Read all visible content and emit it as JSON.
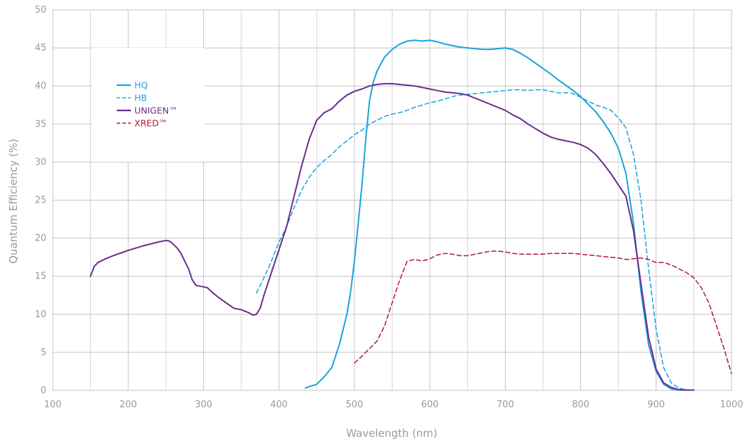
{
  "chart_data": {
    "type": "line",
    "xlabel": "Wavelength (nm)",
    "ylabel": "Quantum Efficiency  (%)",
    "xlim": [
      100,
      1000
    ],
    "ylim": [
      0,
      50
    ],
    "xticks": [
      100,
      200,
      300,
      400,
      500,
      600,
      700,
      800,
      900,
      1000
    ],
    "yticks": [
      0,
      5,
      10,
      15,
      20,
      25,
      30,
      35,
      40,
      45,
      50
    ],
    "grid": true,
    "legend_position": "top-left",
    "series": [
      {
        "name": "HQ",
        "color": "#1aa3dc",
        "dash": "solid",
        "x": [
          435,
          440,
          450,
          460,
          470,
          480,
          490,
          495,
          500,
          505,
          510,
          515,
          520,
          525,
          530,
          540,
          550,
          560,
          570,
          580,
          590,
          600,
          610,
          620,
          630,
          640,
          650,
          660,
          670,
          680,
          690,
          700,
          710,
          720,
          730,
          740,
          750,
          760,
          770,
          780,
          790,
          800,
          810,
          820,
          830,
          840,
          850,
          860,
          870,
          880,
          890,
          900,
          910,
          920,
          930,
          940,
          950
        ],
        "y": [
          0.3,
          0.5,
          0.8,
          1.8,
          3.0,
          6.0,
          10.0,
          13.0,
          17.0,
          22.0,
          27.0,
          33.0,
          38.0,
          40.5,
          42.0,
          43.8,
          44.8,
          45.5,
          45.9,
          46.0,
          45.9,
          46.0,
          45.8,
          45.5,
          45.3,
          45.1,
          45.0,
          44.9,
          44.8,
          44.8,
          44.9,
          45.0,
          44.8,
          44.3,
          43.7,
          43.0,
          42.3,
          41.6,
          40.8,
          40.1,
          39.4,
          38.6,
          37.6,
          36.6,
          35.3,
          33.8,
          31.8,
          28.5,
          22.0,
          13.0,
          6.0,
          2.5,
          0.8,
          0.2,
          0.05,
          0.05,
          0.05
        ]
      },
      {
        "name": "HB",
        "color": "#1aa3dc",
        "dash": "dashed",
        "x": [
          370,
          380,
          390,
          400,
          410,
          420,
          430,
          440,
          450,
          460,
          470,
          480,
          490,
          500,
          510,
          520,
          530,
          540,
          550,
          560,
          570,
          580,
          590,
          600,
          610,
          620,
          630,
          640,
          650,
          660,
          670,
          680,
          690,
          700,
          710,
          720,
          730,
          740,
          750,
          760,
          770,
          780,
          790,
          800,
          810,
          820,
          830,
          840,
          850,
          860,
          870,
          880,
          890,
          900,
          910,
          920,
          930,
          940,
          950
        ],
        "y": [
          12.8,
          14.8,
          17.0,
          19.5,
          21.5,
          24.0,
          26.3,
          28.0,
          29.3,
          30.2,
          31.0,
          32.0,
          32.8,
          33.6,
          34.2,
          35.0,
          35.5,
          36.0,
          36.3,
          36.5,
          36.8,
          37.2,
          37.5,
          37.8,
          38.0,
          38.3,
          38.6,
          38.8,
          38.9,
          39.0,
          39.1,
          39.2,
          39.3,
          39.4,
          39.5,
          39.5,
          39.4,
          39.5,
          39.5,
          39.3,
          39.1,
          39.1,
          39.0,
          38.5,
          38.0,
          37.5,
          37.2,
          36.8,
          35.8,
          34.5,
          31.0,
          25.0,
          16.0,
          8.0,
          3.0,
          1.0,
          0.3,
          0.1,
          0.05
        ]
      },
      {
        "name": "UNIGEN™",
        "color": "#6a2c8c",
        "dash": "solid",
        "x": [
          150,
          155,
          160,
          170,
          180,
          200,
          220,
          240,
          250,
          255,
          260,
          265,
          270,
          275,
          280,
          285,
          290,
          300,
          305,
          310,
          320,
          330,
          340,
          350,
          360,
          365,
          370,
          375,
          380,
          390,
          400,
          410,
          420,
          430,
          440,
          450,
          460,
          470,
          480,
          490,
          500,
          510,
          520,
          530,
          540,
          550,
          560,
          570,
          580,
          590,
          600,
          610,
          620,
          630,
          640,
          650,
          660,
          670,
          680,
          690,
          700,
          710,
          720,
          730,
          740,
          750,
          760,
          770,
          780,
          790,
          800,
          810,
          820,
          830,
          840,
          850,
          860,
          870,
          880,
          890,
          900,
          910,
          920,
          930,
          940,
          950
        ],
        "y": [
          15.0,
          16.3,
          16.8,
          17.3,
          17.7,
          18.4,
          19.0,
          19.5,
          19.7,
          19.6,
          19.2,
          18.7,
          18.0,
          17.0,
          16.0,
          14.5,
          13.8,
          13.6,
          13.5,
          13.0,
          12.2,
          11.5,
          10.8,
          10.6,
          10.2,
          9.9,
          10.0,
          10.8,
          12.5,
          15.5,
          18.5,
          21.5,
          25.5,
          29.5,
          33.0,
          35.5,
          36.5,
          37.0,
          38.0,
          38.8,
          39.3,
          39.6,
          40.0,
          40.2,
          40.3,
          40.3,
          40.2,
          40.1,
          40.0,
          39.8,
          39.6,
          39.4,
          39.2,
          39.1,
          39.0,
          38.8,
          38.4,
          38.0,
          37.6,
          37.2,
          36.8,
          36.2,
          35.7,
          35.0,
          34.4,
          33.8,
          33.3,
          33.0,
          32.8,
          32.6,
          32.3,
          31.8,
          31.0,
          29.8,
          28.5,
          27.0,
          25.5,
          21.0,
          14.0,
          7.0,
          2.8,
          1.0,
          0.4,
          0.1,
          0.05,
          0.05
        ]
      },
      {
        "name": "XRED™",
        "color": "#b5143c",
        "dash": "dashed",
        "x": [
          500,
          510,
          520,
          530,
          540,
          550,
          560,
          570,
          580,
          590,
          600,
          610,
          620,
          630,
          640,
          650,
          660,
          670,
          680,
          690,
          700,
          710,
          720,
          730,
          740,
          750,
          760,
          770,
          780,
          790,
          800,
          810,
          820,
          830,
          840,
          850,
          860,
          870,
          880,
          890,
          900,
          910,
          920,
          930,
          940,
          950,
          960,
          970,
          980,
          990,
          1000
        ],
        "y": [
          3.6,
          4.5,
          5.5,
          6.5,
          8.5,
          11.5,
          14.5,
          17.0,
          17.2,
          17.0,
          17.3,
          17.8,
          18.0,
          17.9,
          17.7,
          17.7,
          17.9,
          18.1,
          18.3,
          18.3,
          18.2,
          18.0,
          17.9,
          17.9,
          17.9,
          17.9,
          18.0,
          18.0,
          18.0,
          18.0,
          17.9,
          17.8,
          17.7,
          17.6,
          17.5,
          17.4,
          17.2,
          17.3,
          17.4,
          17.2,
          16.8,
          16.8,
          16.5,
          16.0,
          15.5,
          14.8,
          13.5,
          11.5,
          8.5,
          5.5,
          2.2
        ]
      }
    ]
  }
}
